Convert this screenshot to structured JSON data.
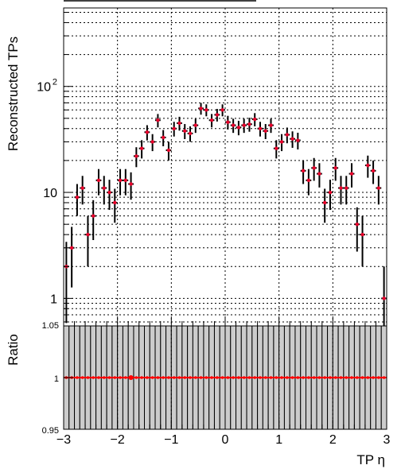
{
  "chart_data": [
    {
      "type": "scatter",
      "panel": "main",
      "ylabel": "Reconstructed TPs",
      "xlim": [
        -3,
        3
      ],
      "ylim": [
        0.55,
        550
      ],
      "yscale": "log",
      "grid": true,
      "xticks": [
        "−3",
        "−2",
        "−1",
        "0",
        "1",
        "2",
        "3"
      ],
      "yticks": [
        {
          "value": 1,
          "label": "1"
        },
        {
          "value": 10,
          "label": "10"
        },
        {
          "value": 100,
          "label": "10",
          "exp": "2"
        }
      ],
      "series": [
        {
          "marker_color": "#e8002a",
          "error_color": "#000000",
          "x": [
            -2.95,
            -2.85,
            -2.75,
            -2.65,
            -2.55,
            -2.45,
            -2.35,
            -2.25,
            -2.15,
            -2.05,
            -1.95,
            -1.85,
            -1.75,
            -1.65,
            -1.55,
            -1.45,
            -1.35,
            -1.25,
            -1.15,
            -1.05,
            -0.95,
            -0.85,
            -0.75,
            -0.65,
            -0.55,
            -0.45,
            -0.35,
            -0.25,
            -0.15,
            -0.05,
            0.05,
            0.15,
            0.25,
            0.35,
            0.45,
            0.55,
            0.65,
            0.75,
            0.85,
            0.95,
            1.05,
            1.15,
            1.25,
            1.35,
            1.45,
            1.55,
            1.65,
            1.75,
            1.85,
            1.95,
            2.05,
            2.15,
            2.25,
            2.35,
            2.45,
            2.55,
            2.65,
            2.75,
            2.85,
            2.95
          ],
          "y": [
            2,
            3,
            9,
            11,
            4,
            6,
            13,
            11,
            10,
            8,
            13,
            13,
            12,
            22,
            26,
            37,
            30,
            48,
            33,
            25,
            40,
            45,
            38,
            36,
            43,
            62,
            60,
            48,
            54,
            60,
            46,
            43,
            41,
            43,
            44,
            49,
            40,
            38,
            43,
            26,
            30,
            35,
            32,
            31,
            16,
            13,
            17,
            15,
            8,
            10,
            17,
            11,
            11,
            15,
            5,
            4,
            18,
            16,
            11,
            1
          ]
        }
      ]
    },
    {
      "type": "scatter",
      "panel": "ratio",
      "title": "",
      "xlabel": "TP η",
      "ylabel": "Ratio",
      "xlim": [
        -3,
        3
      ],
      "ylim": [
        0.95,
        1.05
      ],
      "grid": true,
      "xticks": [
        "−3",
        "−2",
        "−1",
        "0",
        "1",
        "2",
        "3"
      ],
      "yticks": [
        {
          "value": 0.95,
          "label": "0.95"
        },
        {
          "value": 1.0,
          "label": "1"
        },
        {
          "value": 1.05,
          "label": "1.05"
        }
      ],
      "series": [
        {
          "marker_color": "#ff0000",
          "band_color": "#cccccc",
          "x": [
            -2.95,
            -2.85,
            -2.75,
            -2.65,
            -2.55,
            -2.45,
            -2.35,
            -2.25,
            -2.15,
            -2.05,
            -1.95,
            -1.85,
            -1.75,
            -1.65,
            -1.55,
            -1.45,
            -1.35,
            -1.25,
            -1.15,
            -1.05,
            -0.95,
            -0.85,
            -0.75,
            -0.65,
            -0.55,
            -0.45,
            -0.35,
            -0.25,
            -0.15,
            -0.05,
            0.05,
            0.15,
            0.25,
            0.35,
            0.45,
            0.55,
            0.65,
            0.75,
            0.85,
            0.95,
            1.05,
            1.15,
            1.25,
            1.35,
            1.45,
            1.55,
            1.65,
            1.75,
            1.85,
            1.95,
            2.05,
            2.15,
            2.25,
            2.35,
            2.45,
            2.55,
            2.65,
            2.75,
            2.85,
            2.95
          ],
          "y": [
            1,
            1,
            1,
            1,
            1,
            1,
            1,
            1,
            1,
            1,
            1,
            1,
            1,
            1,
            1,
            1,
            1,
            1,
            1,
            1,
            1,
            1,
            1,
            1,
            1,
            1,
            1,
            1,
            1,
            1,
            1,
            1,
            1,
            1,
            1,
            1,
            1,
            1,
            1,
            1,
            1,
            1,
            1,
            1,
            1,
            1,
            1,
            1,
            1,
            1,
            1,
            1,
            1,
            1,
            1,
            1,
            1,
            1,
            1,
            1
          ]
        }
      ]
    }
  ]
}
